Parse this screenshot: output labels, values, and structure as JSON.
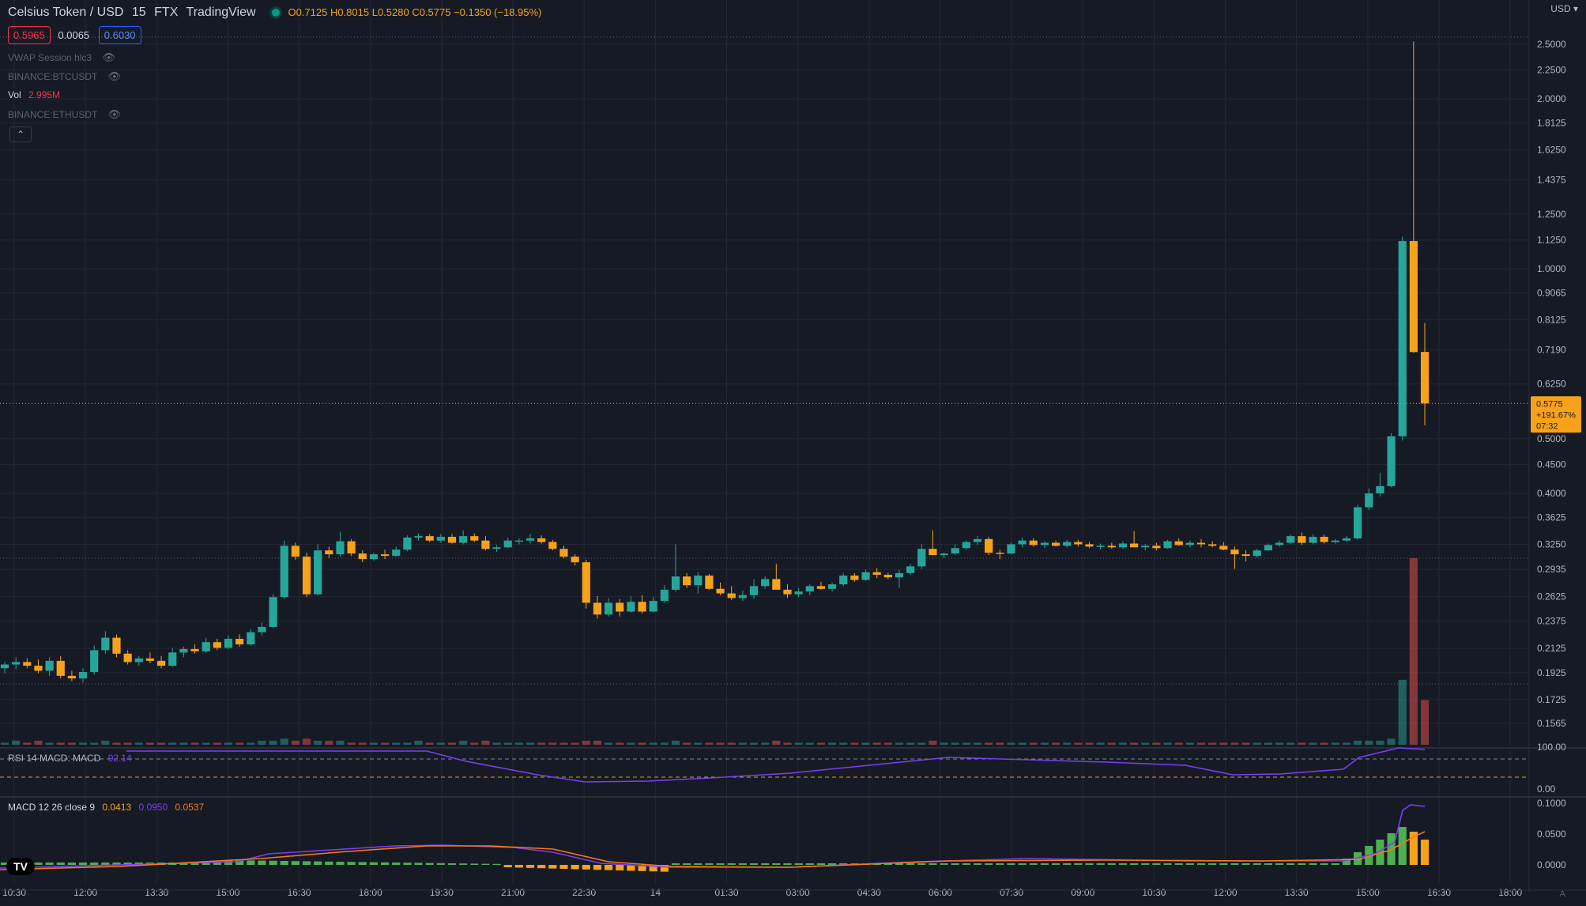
{
  "header": {
    "symbol": "Celsius Token / USD",
    "interval": "15",
    "exchange": "FTX",
    "source": "TradingView",
    "ohlc": "O0.7125 H0.8015 L0.5280 C0.5775 −0.1350 (−18.95%)"
  },
  "quote": {
    "bid": "0.5965",
    "spread": "0.0065",
    "ask": "0.6030"
  },
  "indicators": [
    {
      "label": "VWAP Session hlc3",
      "hidden": true
    },
    {
      "label": "BINANCE:BTCUSDT",
      "hidden": true
    },
    {
      "label": "Vol",
      "value": "2.995M",
      "hidden": false
    },
    {
      "label": "BINANCE:ETHUSDT",
      "hidden": true
    }
  ],
  "currency": "USD",
  "price_axis": [
    "2.5000",
    "2.2500",
    "2.0000",
    "1.8125",
    "1.6250",
    "1.4375",
    "1.2500",
    "1.1250",
    "1.0000",
    "0.9065",
    "0.8125",
    "0.7190",
    "0.6250",
    "0.5000",
    "0.4500",
    "0.4000",
    "0.3625",
    "0.3250",
    "0.2935",
    "0.2625",
    "0.2375",
    "0.2125",
    "0.1925",
    "0.1725",
    "0.1565"
  ],
  "last_price": {
    "price": "0.5775",
    "change": "+191.67%",
    "countdown": "07:32"
  },
  "rsi": {
    "label": "RSI 14 MACD: MACD",
    "value": "92.14",
    "ticks": [
      "100.00",
      "0.00"
    ]
  },
  "macd": {
    "label": "MACD 12 26 close 9",
    "v1": "0.0413",
    "v2": "0.0950",
    "v3": "0.0537",
    "ticks": [
      "0.1000",
      "0.0500",
      "0.0000"
    ]
  },
  "time_axis": [
    "10:30",
    "12:00",
    "13:30",
    "15:00",
    "16:30",
    "18:00",
    "19:30",
    "21:00",
    "22:30",
    "14",
    "01:30",
    "03:00",
    "04:30",
    "06:00",
    "07:30",
    "09:00",
    "10:30",
    "12:00",
    "13:30",
    "15:00",
    "16:30",
    "18:00"
  ],
  "colors": {
    "up": "#26a69a",
    "down": "#f7a21b",
    "bg": "#161a25",
    "grid": "#242733",
    "axis_text": "#b2b5be",
    "macd_line": "#7b3ff2",
    "signal_line": "#f7781b"
  },
  "chart_data": {
    "type": "candlestick",
    "series": [
      {
        "name": "price",
        "values": [
          [
            0.196,
            0.201,
            0.192,
            0.199
          ],
          [
            0.199,
            0.205,
            0.195,
            0.201
          ],
          [
            0.201,
            0.204,
            0.196,
            0.198
          ],
          [
            0.198,
            0.203,
            0.192,
            0.194
          ],
          [
            0.194,
            0.205,
            0.19,
            0.202
          ],
          [
            0.202,
            0.206,
            0.188,
            0.19
          ],
          [
            0.19,
            0.194,
            0.186,
            0.188
          ],
          [
            0.188,
            0.196,
            0.185,
            0.193
          ],
          [
            0.193,
            0.215,
            0.191,
            0.211
          ],
          [
            0.211,
            0.228,
            0.208,
            0.222
          ],
          [
            0.222,
            0.225,
            0.205,
            0.208
          ],
          [
            0.208,
            0.211,
            0.199,
            0.201
          ],
          [
            0.201,
            0.206,
            0.198,
            0.204
          ],
          [
            0.204,
            0.209,
            0.2,
            0.202
          ],
          [
            0.202,
            0.206,
            0.196,
            0.198
          ],
          [
            0.198,
            0.213,
            0.197,
            0.209
          ],
          [
            0.209,
            0.214,
            0.205,
            0.212
          ],
          [
            0.212,
            0.216,
            0.208,
            0.21
          ],
          [
            0.21,
            0.222,
            0.209,
            0.218
          ],
          [
            0.218,
            0.221,
            0.211,
            0.213
          ],
          [
            0.213,
            0.224,
            0.212,
            0.221
          ],
          [
            0.221,
            0.225,
            0.214,
            0.216
          ],
          [
            0.216,
            0.23,
            0.215,
            0.227
          ],
          [
            0.227,
            0.236,
            0.224,
            0.232
          ],
          [
            0.232,
            0.265,
            0.231,
            0.262
          ],
          [
            0.262,
            0.33,
            0.26,
            0.323
          ],
          [
            0.323,
            0.327,
            0.305,
            0.309
          ],
          [
            0.309,
            0.314,
            0.262,
            0.265
          ],
          [
            0.265,
            0.325,
            0.264,
            0.317
          ],
          [
            0.317,
            0.322,
            0.307,
            0.312
          ],
          [
            0.312,
            0.342,
            0.309,
            0.329
          ],
          [
            0.329,
            0.332,
            0.31,
            0.313
          ],
          [
            0.313,
            0.317,
            0.302,
            0.306
          ],
          [
            0.306,
            0.314,
            0.304,
            0.312
          ],
          [
            0.312,
            0.318,
            0.306,
            0.31
          ],
          [
            0.31,
            0.322,
            0.309,
            0.318
          ],
          [
            0.318,
            0.337,
            0.316,
            0.334
          ],
          [
            0.334,
            0.34,
            0.33,
            0.336
          ],
          [
            0.336,
            0.339,
            0.328,
            0.33
          ],
          [
            0.33,
            0.339,
            0.327,
            0.335
          ],
          [
            0.335,
            0.339,
            0.326,
            0.327
          ],
          [
            0.327,
            0.344,
            0.325,
            0.336
          ],
          [
            0.336,
            0.34,
            0.328,
            0.33
          ],
          [
            0.33,
            0.336,
            0.317,
            0.319
          ],
          [
            0.319,
            0.324,
            0.315,
            0.321
          ],
          [
            0.321,
            0.334,
            0.32,
            0.33
          ],
          [
            0.33,
            0.333,
            0.325,
            0.33
          ],
          [
            0.33,
            0.339,
            0.326,
            0.333
          ],
          [
            0.333,
            0.337,
            0.326,
            0.328
          ],
          [
            0.328,
            0.331,
            0.317,
            0.319
          ],
          [
            0.319,
            0.323,
            0.307,
            0.309
          ],
          [
            0.309,
            0.312,
            0.298,
            0.302
          ],
          [
            0.302,
            0.305,
            0.25,
            0.256
          ],
          [
            0.256,
            0.263,
            0.24,
            0.244
          ],
          [
            0.244,
            0.261,
            0.242,
            0.256
          ],
          [
            0.256,
            0.26,
            0.242,
            0.247
          ],
          [
            0.247,
            0.263,
            0.246,
            0.257
          ],
          [
            0.257,
            0.264,
            0.245,
            0.247
          ],
          [
            0.247,
            0.262,
            0.246,
            0.258
          ],
          [
            0.258,
            0.275,
            0.256,
            0.27
          ],
          [
            0.27,
            0.325,
            0.268,
            0.285
          ],
          [
            0.285,
            0.289,
            0.272,
            0.275
          ],
          [
            0.275,
            0.29,
            0.266,
            0.286
          ],
          [
            0.286,
            0.288,
            0.27,
            0.271
          ],
          [
            0.271,
            0.278,
            0.264,
            0.266
          ],
          [
            0.266,
            0.274,
            0.259,
            0.261
          ],
          [
            0.261,
            0.269,
            0.258,
            0.264
          ],
          [
            0.264,
            0.282,
            0.26,
            0.274
          ],
          [
            0.274,
            0.285,
            0.271,
            0.282
          ],
          [
            0.282,
            0.3,
            0.28,
            0.27
          ],
          [
            0.27,
            0.276,
            0.261,
            0.265
          ],
          [
            0.265,
            0.272,
            0.262,
            0.268
          ],
          [
            0.268,
            0.276,
            0.264,
            0.274
          ],
          [
            0.274,
            0.279,
            0.27,
            0.271
          ],
          [
            0.271,
            0.278,
            0.268,
            0.276
          ],
          [
            0.276,
            0.289,
            0.274,
            0.286
          ],
          [
            0.286,
            0.289,
            0.279,
            0.281
          ],
          [
            0.281,
            0.293,
            0.28,
            0.29
          ],
          [
            0.29,
            0.295,
            0.283,
            0.287
          ],
          [
            0.287,
            0.289,
            0.282,
            0.284
          ],
          [
            0.284,
            0.293,
            0.272,
            0.289
          ],
          [
            0.289,
            0.3,
            0.287,
            0.297
          ],
          [
            0.297,
            0.325,
            0.294,
            0.319
          ],
          [
            0.319,
            0.344,
            0.316,
            0.311
          ],
          [
            0.311,
            0.314,
            0.307,
            0.313
          ],
          [
            0.313,
            0.325,
            0.311,
            0.32
          ],
          [
            0.32,
            0.33,
            0.318,
            0.328
          ],
          [
            0.328,
            0.336,
            0.324,
            0.332
          ],
          [
            0.332,
            0.335,
            0.311,
            0.314
          ],
          [
            0.314,
            0.318,
            0.306,
            0.313
          ],
          [
            0.313,
            0.327,
            0.312,
            0.325
          ],
          [
            0.325,
            0.334,
            0.321,
            0.33
          ],
          [
            0.33,
            0.333,
            0.322,
            0.324
          ],
          [
            0.324,
            0.329,
            0.32,
            0.327
          ],
          [
            0.327,
            0.33,
            0.322,
            0.323
          ],
          [
            0.323,
            0.331,
            0.321,
            0.328
          ],
          [
            0.328,
            0.331,
            0.322,
            0.325
          ],
          [
            0.325,
            0.328,
            0.32,
            0.322
          ],
          [
            0.322,
            0.326,
            0.318,
            0.323
          ],
          [
            0.323,
            0.327,
            0.319,
            0.321
          ],
          [
            0.321,
            0.329,
            0.319,
            0.326
          ],
          [
            0.326,
            0.343,
            0.322,
            0.321
          ],
          [
            0.321,
            0.325,
            0.317,
            0.323
          ],
          [
            0.323,
            0.327,
            0.317,
            0.32
          ],
          [
            0.32,
            0.331,
            0.319,
            0.329
          ],
          [
            0.329,
            0.333,
            0.323,
            0.324
          ],
          [
            0.324,
            0.33,
            0.321,
            0.327
          ],
          [
            0.327,
            0.332,
            0.321,
            0.325
          ],
          [
            0.325,
            0.329,
            0.321,
            0.323
          ],
          [
            0.323,
            0.328,
            0.317,
            0.318
          ],
          [
            0.318,
            0.322,
            0.294,
            0.312
          ],
          [
            0.312,
            0.317,
            0.303,
            0.31
          ],
          [
            0.31,
            0.319,
            0.308,
            0.317
          ],
          [
            0.317,
            0.326,
            0.316,
            0.324
          ],
          [
            0.324,
            0.33,
            0.322,
            0.327
          ],
          [
            0.327,
            0.338,
            0.325,
            0.336
          ],
          [
            0.336,
            0.341,
            0.324,
            0.327
          ],
          [
            0.327,
            0.338,
            0.325,
            0.335
          ],
          [
            0.335,
            0.338,
            0.326,
            0.328
          ],
          [
            0.328,
            0.332,
            0.326,
            0.33
          ],
          [
            0.33,
            0.336,
            0.328,
            0.333
          ],
          [
            0.333,
            0.382,
            0.331,
            0.378
          ],
          [
            0.378,
            0.408,
            0.374,
            0.4
          ],
          [
            0.4,
            0.435,
            0.395,
            0.412
          ],
          [
            0.412,
            0.511,
            0.41,
            0.505
          ],
          [
            0.505,
            1.14,
            0.496,
            1.12
          ],
          [
            1.12,
            2.53,
            0.71,
            0.712
          ],
          [
            0.7125,
            0.8015,
            0.528,
            0.5775
          ]
        ]
      }
    ],
    "volume": [
      1,
      2,
      1,
      2,
      1,
      1,
      1,
      1,
      1,
      2,
      1,
      1,
      1,
      1,
      1,
      1,
      1,
      1,
      1,
      1,
      1,
      1,
      1,
      2,
      2,
      3,
      2,
      3,
      2,
      2,
      2,
      1,
      1,
      1,
      1,
      1,
      1,
      2,
      1,
      1,
      1,
      2,
      1,
      2,
      1,
      1,
      1,
      1,
      1,
      1,
      1,
      1,
      2,
      2,
      1,
      1,
      1,
      1,
      1,
      1,
      2,
      1,
      1,
      1,
      1,
      1,
      1,
      1,
      1,
      2,
      1,
      1,
      1,
      1,
      1,
      1,
      1,
      1,
      1,
      1,
      1,
      1,
      1,
      2,
      1,
      1,
      1,
      1,
      1,
      1,
      1,
      1,
      1,
      1,
      1,
      1,
      1,
      1,
      1,
      1,
      1,
      1,
      1,
      1,
      1,
      1,
      1,
      1,
      1,
      1,
      1,
      1,
      1,
      1,
      1,
      1,
      1,
      1,
      1,
      1,
      1,
      2,
      2,
      2,
      3,
      32,
      92,
      22
    ],
    "ylim": [
      0.1565,
      2.5
    ],
    "scale": "log"
  }
}
